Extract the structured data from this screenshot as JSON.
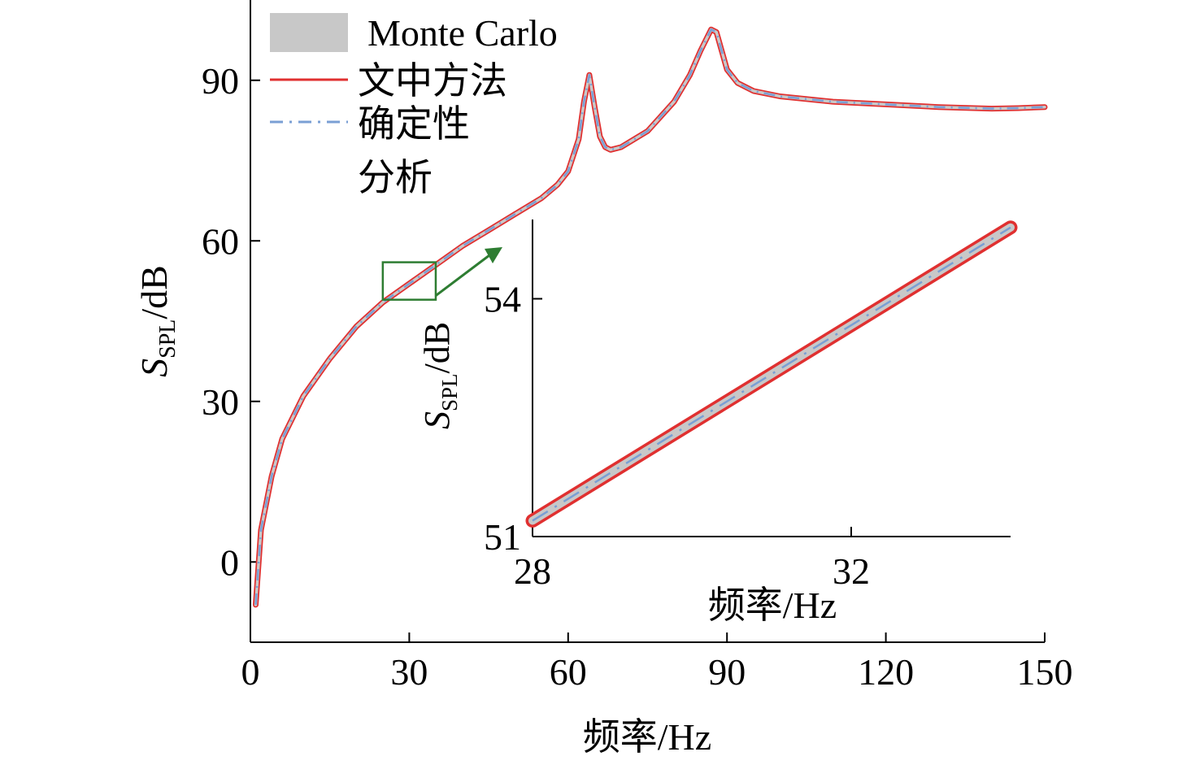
{
  "colors": {
    "method_line": "#e03030",
    "band": "#c8c8c8",
    "deterministic_line": "#7a9fd4",
    "zoom_box": "#2e7d32"
  },
  "chart_data": [
    {
      "type": "line",
      "xlabel": "频率/Hz",
      "ylabel_main": "S",
      "ylabel_sub": "SPL",
      "ylabel_unit": "/dB",
      "xlim": [
        0,
        150
      ],
      "ylim": [
        -15,
        105
      ],
      "xticks": [
        0,
        30,
        60,
        90,
        120,
        150
      ],
      "yticks": [
        0,
        30,
        60,
        90
      ],
      "legend": {
        "placement": "top-left",
        "entries": [
          {
            "label": "Monte Carlo",
            "style": "band"
          },
          {
            "label": "文中方法",
            "style": "solid-red"
          },
          {
            "label": "确定性",
            "label_line2": "分析",
            "style": "dashdot-blue"
          }
        ]
      },
      "series": [
        {
          "name": "Monte Carlo",
          "x": [
            1,
            2,
            4,
            6,
            10,
            15,
            20,
            25,
            30,
            35,
            40,
            45,
            50,
            55,
            58,
            60,
            62,
            63,
            64,
            65,
            66,
            67,
            68,
            70,
            75,
            80,
            83,
            85,
            87,
            88,
            89,
            90,
            92,
            95,
            100,
            110,
            120,
            130,
            140,
            145,
            150
          ],
          "y": [
            -8,
            6,
            16,
            23,
            31,
            38,
            44,
            48.5,
            52,
            55.5,
            59,
            62,
            65,
            68,
            70.5,
            73,
            79,
            86,
            91,
            85,
            79.5,
            77.5,
            77,
            77.5,
            80.5,
            86,
            91,
            95.5,
            99.5,
            99,
            95.5,
            92,
            89.5,
            88,
            87,
            86,
            85.5,
            85,
            84.7,
            84.8,
            85
          ]
        },
        {
          "name": "文中方法",
          "x": [
            1,
            2,
            4,
            6,
            10,
            15,
            20,
            25,
            30,
            35,
            40,
            45,
            50,
            55,
            58,
            60,
            62,
            63,
            64,
            65,
            66,
            67,
            68,
            70,
            75,
            80,
            83,
            85,
            87,
            88,
            89,
            90,
            92,
            95,
            100,
            110,
            120,
            130,
            140,
            145,
            150
          ],
          "y": [
            -8,
            6,
            16,
            23,
            31,
            38,
            44,
            48.5,
            52,
            55.5,
            59,
            62,
            65,
            68,
            70.5,
            73,
            79,
            86,
            91,
            85,
            79.5,
            77.5,
            77,
            77.5,
            80.5,
            86,
            91,
            95.5,
            99.5,
            99,
            95.5,
            92,
            89.5,
            88,
            87,
            86,
            85.5,
            85,
            84.7,
            84.8,
            85
          ]
        },
        {
          "name": "确定性分析",
          "x": [
            1,
            2,
            4,
            6,
            10,
            15,
            20,
            25,
            30,
            35,
            40,
            45,
            50,
            55,
            58,
            60,
            62,
            63,
            64,
            65,
            66,
            67,
            68,
            70,
            75,
            80,
            83,
            85,
            87,
            88,
            89,
            90,
            92,
            95,
            100,
            110,
            120,
            130,
            140,
            145,
            150
          ],
          "y": [
            -8,
            6,
            16,
            23,
            31,
            38,
            44,
            48.5,
            52,
            55.5,
            59,
            62,
            65,
            68,
            70.5,
            73,
            79,
            86,
            91,
            85,
            79.5,
            77.5,
            77,
            77.5,
            80.5,
            86,
            91,
            95.5,
            99.5,
            99,
            95.5,
            92,
            89.5,
            88,
            87,
            86,
            85.5,
            85,
            84.7,
            84.8,
            85
          ]
        }
      ],
      "zoom_region": {
        "x": [
          25,
          35
        ],
        "y": [
          49,
          56
        ]
      }
    },
    {
      "type": "line",
      "xlabel": "频率/Hz",
      "ylabel_main": "S",
      "ylabel_sub": "SPL",
      "ylabel_unit": "/dB",
      "xlim": [
        28,
        34
      ],
      "ylim": [
        51,
        55
      ],
      "xticks": [
        28,
        32
      ],
      "yticks": [
        51,
        54
      ],
      "series": [
        {
          "name": "Monte Carlo",
          "x": [
            28,
            34
          ],
          "y": [
            51.2,
            54.9
          ]
        },
        {
          "name": "文中方法",
          "x": [
            28,
            34
          ],
          "y": [
            51.2,
            54.9
          ]
        },
        {
          "name": "确定性分析",
          "x": [
            28,
            34
          ],
          "y": [
            51.2,
            54.9
          ]
        }
      ]
    }
  ]
}
